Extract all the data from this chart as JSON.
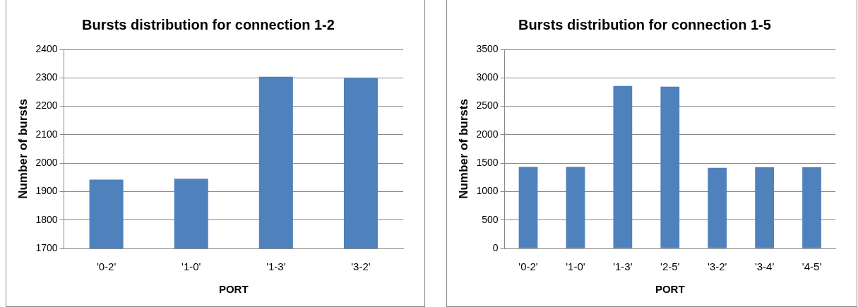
{
  "chart_data": [
    {
      "type": "bar",
      "title": "Bursts distribution for connection 1-2",
      "xlabel": "PORT",
      "ylabel": "Number of bursts",
      "categories": [
        "'0-2'",
        "'1-0'",
        "'1-3'",
        "'3-2'"
      ],
      "series": [
        {
          "color": "#4f81bd",
          "values": [
            1942,
            1945,
            2304,
            2300
          ]
        }
      ],
      "ylim": [
        1700,
        2400
      ],
      "yticks": [
        1700,
        1800,
        1900,
        2000,
        2100,
        2200,
        2300,
        2400
      ],
      "grid": "y",
      "legend": false
    },
    {
      "type": "bar",
      "title": "Bursts distribution for connection 1-5",
      "xlabel": "PORT",
      "ylabel": "Number of bursts",
      "categories": [
        "'0-2'",
        "'1-0'",
        "'1-3'",
        "'2-5'",
        "'3-2'",
        "'3-4'",
        "'4-5'"
      ],
      "series": [
        {
          "color": "#4f81bd",
          "values": [
            1435,
            1435,
            2857,
            2845,
            1417,
            1428,
            1428
          ]
        }
      ],
      "ylim": [
        0,
        3500
      ],
      "yticks": [
        0,
        500,
        1000,
        1500,
        2000,
        2500,
        3000,
        3500
      ],
      "grid": "y",
      "legend": false
    }
  ]
}
